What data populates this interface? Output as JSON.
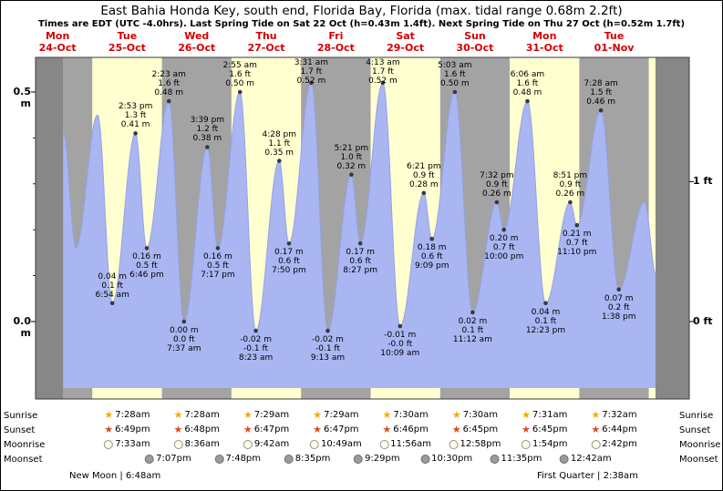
{
  "chart_data": {
    "type": "area",
    "title": "East Bahia Honda Key, south end, Florida Bay, Florida (max. tidal range 0.68m 2.2ft)",
    "subtitle": "Times are EDT (UTC -4.0hrs). Last Spring Tide on Sat 22 Oct (h=0.43m 1.4ft). Next Spring Tide on Thu 27 Oct (h=0.52m 1.7ft)",
    "time_origin": "Mon 24-Oct 00:00",
    "t_unit": "hours from Mon 24-Oct 00:00",
    "ylim": [
      -0.18,
      0.58
    ],
    "y_axis": {
      "left": [
        {
          "label": "0.5 m",
          "meters": 0.5
        },
        {
          "label": "0.0 m",
          "meters": 0.0
        }
      ],
      "right": [
        {
          "label": "1 ft",
          "meters": 0.3048
        },
        {
          "label": "0 ft",
          "meters": 0.0
        }
      ]
    },
    "days": [
      {
        "name": "Mon",
        "date": "24-Oct"
      },
      {
        "name": "Tue",
        "date": "25-Oct"
      },
      {
        "name": "Wed",
        "date": "26-Oct"
      },
      {
        "name": "Thu",
        "date": "27-Oct"
      },
      {
        "name": "Fri",
        "date": "28-Oct"
      },
      {
        "name": "Sat",
        "date": "29-Oct"
      },
      {
        "name": "Sun",
        "date": "30-Oct"
      },
      {
        "name": "Mon",
        "date": "31-Oct"
      },
      {
        "name": "Tue",
        "date": "01-Nov"
      }
    ],
    "tide_events": [
      {
        "t": 14.0,
        "m": 0.41,
        "type": "high",
        "lines": null
      },
      {
        "t": 18.3,
        "m": 0.16,
        "type": "low",
        "lines": null
      },
      {
        "t": 25.8,
        "m": 0.45,
        "type": "high",
        "lines": null
      },
      {
        "t": 30.9,
        "m": 0.04,
        "type": "low",
        "lines": [
          "0.04 m",
          "0.1 ft",
          "6:54 am"
        ],
        "placement": "above"
      },
      {
        "t": 38.883,
        "m": 0.41,
        "type": "high",
        "lines": [
          "2:53 pm",
          "1.3 ft",
          "0.41 m"
        ]
      },
      {
        "t": 42.767,
        "m": 0.16,
        "type": "low",
        "lines": [
          "0.16 m",
          "0.5 ft",
          "6:46 pm"
        ]
      },
      {
        "t": 50.383,
        "m": 0.48,
        "type": "high",
        "lines": [
          "2:23 am",
          "1.6 ft",
          "0.48 m"
        ]
      },
      {
        "t": 55.617,
        "m": 0.0,
        "type": "low",
        "lines": [
          "0.00 m",
          "0.0 ft",
          "7:37 am"
        ]
      },
      {
        "t": 63.65,
        "m": 0.38,
        "type": "high",
        "lines": [
          "3:39 pm",
          "1.2 ft",
          "0.38 m"
        ]
      },
      {
        "t": 67.283,
        "m": 0.16,
        "type": "low",
        "lines": [
          "0.16 m",
          "0.5 ft",
          "7:17 pm"
        ]
      },
      {
        "t": 74.917,
        "m": 0.5,
        "type": "high",
        "lines": [
          "2:55 am",
          "1.6 ft",
          "0.50 m"
        ]
      },
      {
        "t": 80.383,
        "m": -0.02,
        "type": "low",
        "lines": [
          "-0.02 m",
          "-0.1 ft",
          "8:23 am"
        ]
      },
      {
        "t": 88.467,
        "m": 0.35,
        "type": "high",
        "lines": [
          "4:28 pm",
          "1.1 ft",
          "0.35 m"
        ]
      },
      {
        "t": 91.833,
        "m": 0.17,
        "type": "low",
        "lines": [
          "0.17 m",
          "0.6 ft",
          "7:50 pm"
        ]
      },
      {
        "t": 99.517,
        "m": 0.52,
        "type": "high",
        "lines": [
          "3:31 am",
          "1.7 ft",
          "0.52 m"
        ]
      },
      {
        "t": 105.217,
        "m": -0.02,
        "type": "low",
        "lines": [
          "-0.02 m",
          "-0.1 ft",
          "9:13 am"
        ]
      },
      {
        "t": 113.35,
        "m": 0.32,
        "type": "high",
        "lines": [
          "5:21 pm",
          "1.0 ft",
          "0.32 m"
        ]
      },
      {
        "t": 116.45,
        "m": 0.17,
        "type": "low",
        "lines": [
          "0.17 m",
          "0.6 ft",
          "8:27 pm"
        ]
      },
      {
        "t": 124.217,
        "m": 0.52,
        "type": "high",
        "lines": [
          "4:13 am",
          "1.7 ft",
          "0.52 m"
        ]
      },
      {
        "t": 130.15,
        "m": -0.01,
        "type": "low",
        "lines": [
          "-0.01 m",
          "-0.0 ft",
          "10:09 am"
        ]
      },
      {
        "t": 138.35,
        "m": 0.28,
        "type": "high",
        "lines": [
          "6:21 pm",
          "0.9 ft",
          "0.28 m"
        ]
      },
      {
        "t": 141.15,
        "m": 0.18,
        "type": "low",
        "lines": [
          "0.18 m",
          "0.6 ft",
          "9:09 pm"
        ]
      },
      {
        "t": 149.05,
        "m": 0.5,
        "type": "high",
        "lines": [
          "5:03 am",
          "1.6 ft",
          "0.50 m"
        ]
      },
      {
        "t": 155.2,
        "m": 0.02,
        "type": "low",
        "lines": [
          "0.02 m",
          "0.1 ft",
          "11:12 am"
        ]
      },
      {
        "t": 163.533,
        "m": 0.26,
        "type": "high",
        "lines": [
          "7:32 pm",
          "0.9 ft",
          "0.26 m"
        ]
      },
      {
        "t": 166.0,
        "m": 0.2,
        "type": "low",
        "lines": [
          "0.20 m",
          "0.7 ft",
          "10:00 pm"
        ]
      },
      {
        "t": 174.1,
        "m": 0.48,
        "type": "high",
        "lines": [
          "6:06 am",
          "1.6 ft",
          "0.48 m"
        ]
      },
      {
        "t": 180.383,
        "m": 0.04,
        "type": "low",
        "lines": [
          "0.04 m",
          "0.1 ft",
          "12:23 pm"
        ]
      },
      {
        "t": 188.85,
        "m": 0.26,
        "type": "high",
        "lines": [
          "8:51 pm",
          "0.9 ft",
          "0.26 m"
        ]
      },
      {
        "t": 191.167,
        "m": 0.21,
        "type": "low",
        "lines": [
          "0.21 m",
          "0.7 ft",
          "11:10 pm"
        ]
      },
      {
        "t": 199.467,
        "m": 0.46,
        "type": "high",
        "lines": [
          "7:28 am",
          "1.5 ft",
          "0.46 m"
        ]
      },
      {
        "t": 205.633,
        "m": 0.07,
        "type": "low",
        "lines": [
          "0.07 m",
          "0.2 ft",
          "1:38 pm"
        ]
      },
      {
        "t": 214.5,
        "m": 0.26,
        "type": "high",
        "lines": null
      },
      {
        "t": 218.5,
        "m": 0.1,
        "type": "low",
        "lines": null
      }
    ]
  },
  "astro": {
    "row_labels": [
      "Sunrise",
      "Sunset",
      "Moonrise",
      "Moonset"
    ],
    "sunrise": {
      "icon": "sunrise-star-icon",
      "times": [
        "7:28am",
        "7:28am",
        "7:29am",
        "7:29am",
        "7:30am",
        "7:30am",
        "7:31am",
        "7:32am"
      ]
    },
    "sunset": {
      "icon": "sunset-star-icon",
      "times": [
        "6:49pm",
        "6:48pm",
        "6:47pm",
        "6:47pm",
        "6:46pm",
        "6:45pm",
        "6:45pm",
        "6:44pm"
      ]
    },
    "moonrise": {
      "icon": "moonrise-circle-icon",
      "times": [
        "7:33am",
        "8:36am",
        "9:42am",
        "10:49am",
        "11:56am",
        "12:58pm",
        "1:54pm",
        "2:42pm"
      ]
    },
    "moonset": {
      "icon": "moonset-circle-icon",
      "times": [
        "7:07pm",
        "7:48pm",
        "8:35pm",
        "9:29pm",
        "10:30pm",
        "11:35pm",
        "12:42am"
      ]
    },
    "footer_left": "New Moon | 6:48am",
    "footer_right": "First Quarter | 2:38am"
  },
  "colors": {
    "day_label_red": "#d40000",
    "band_yellow": "#ffffd0",
    "band_gray": "#a3a3a3",
    "band_dark": "#878787",
    "curve_fill": "#aab6f2",
    "curve_stroke": "#93a2e8",
    "dot": "#333a45",
    "frame": "#3c3c3c",
    "sunrise_star": "#f5a800",
    "sunset_star": "#e0491a",
    "moonrise_fill": "#ffffe8",
    "moonset_fill": "#9b9b9b"
  }
}
